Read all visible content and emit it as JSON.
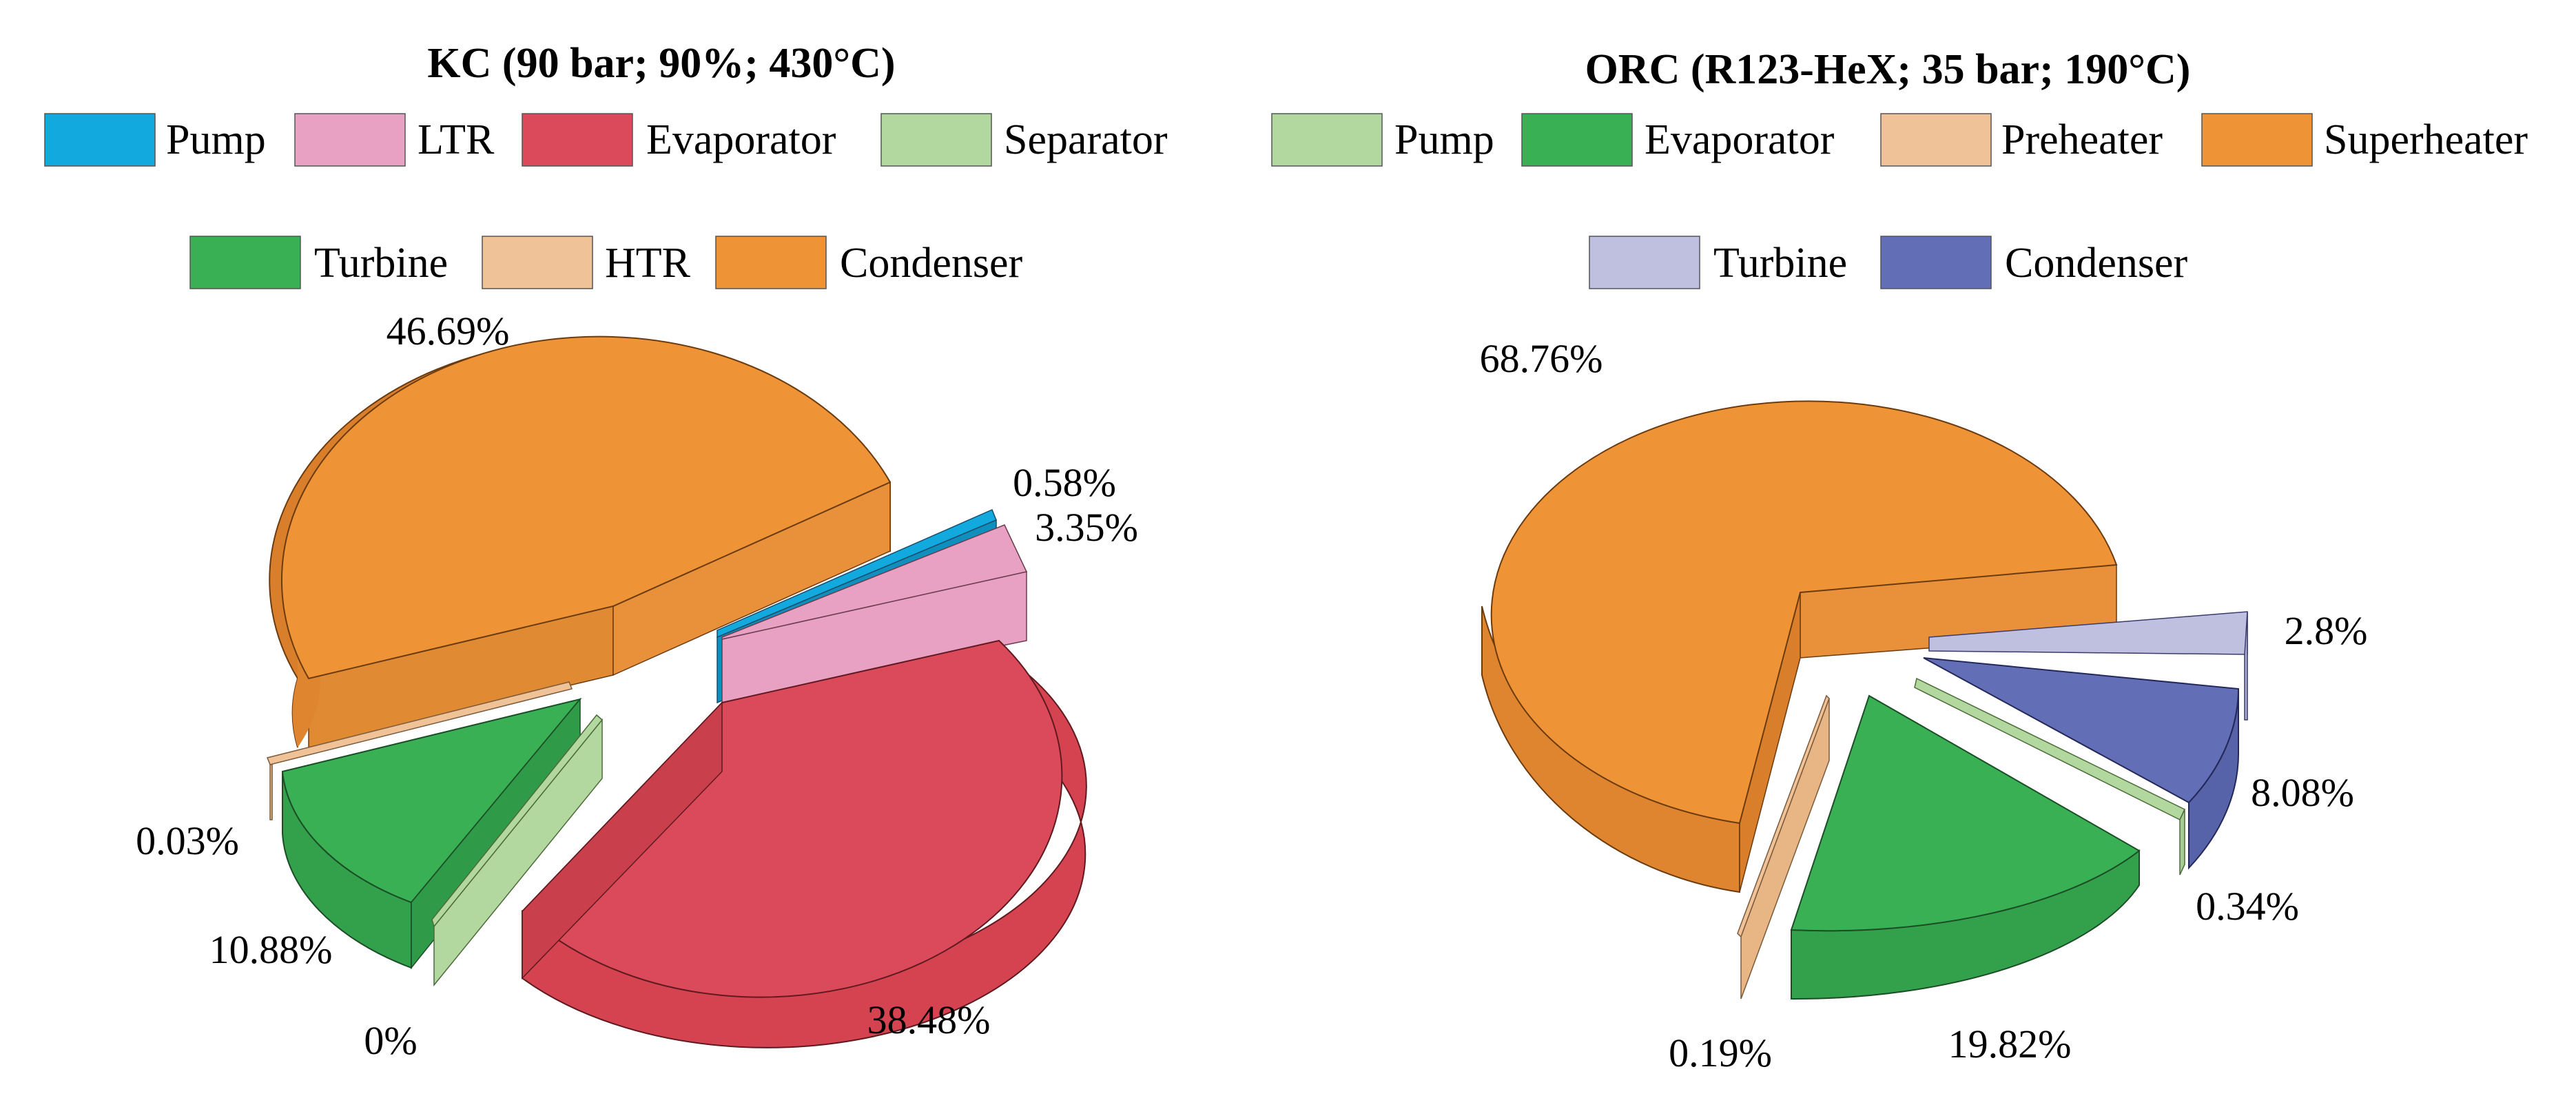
{
  "chart_data": [
    {
      "type": "pie",
      "title": "KC (90 bar; 90%; 430°C)",
      "legend": [
        "Pump",
        "LTR",
        "Evaporator",
        "Separator",
        "Turbine",
        "HTR",
        "Condenser"
      ],
      "slices": [
        {
          "name": "Pump",
          "value": 0.58,
          "label": "0.58%",
          "color": "#12a9de"
        },
        {
          "name": "LTR",
          "value": 3.35,
          "label": "3.35%",
          "color": "#e8a1c3"
        },
        {
          "name": "Evaporator",
          "value": 38.48,
          "label": "38.48%",
          "color": "#db4a5a"
        },
        {
          "name": "Separator",
          "value": 0.0,
          "label": "0%",
          "color": "#b3d89f"
        },
        {
          "name": "Turbine",
          "value": 10.88,
          "label": "10.88%",
          "color": "#39b054"
        },
        {
          "name": "HTR",
          "value": 0.03,
          "label": "0.03%",
          "color": "#f0c297"
        },
        {
          "name": "Condenser",
          "value": 46.69,
          "label": "46.69%",
          "color": "#ef9337"
        }
      ]
    },
    {
      "type": "pie",
      "title": "ORC (R123-HeX; 35 bar; 190°C)",
      "legend": [
        "Pump",
        "Evaporator",
        "Preheater",
        "Superheater",
        "Turbine",
        "Condenser"
      ],
      "slices": [
        {
          "name": "Pump",
          "value": 0.34,
          "label": "0.34%",
          "color": "#b3d89f"
        },
        {
          "name": "Evaporator",
          "value": 19.82,
          "label": "19.82%",
          "color": "#39b054"
        },
        {
          "name": "Preheater",
          "value": 0.19,
          "label": "0.19%",
          "color": "#f0c297"
        },
        {
          "name": "Superheater",
          "value": 68.76,
          "label": "68.76%",
          "color": "#ef9337"
        },
        {
          "name": "Turbine",
          "value": 2.8,
          "label": "2.8%",
          "color": "#bfbfe0"
        },
        {
          "name": "Condenser",
          "value": 8.08,
          "label": "8.08%",
          "color": "#626fb6"
        }
      ]
    }
  ]
}
